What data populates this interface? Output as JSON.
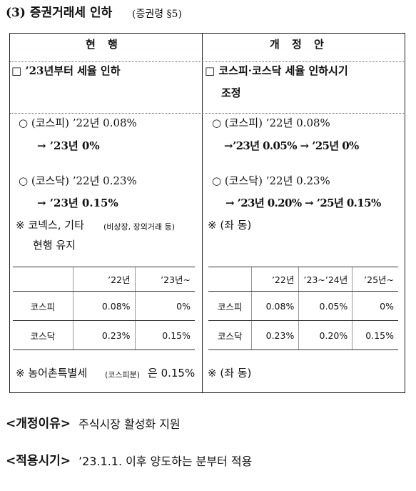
{
  "title": {
    "main": "(3) 증권거래세 인하",
    "ref": "(증권령 §5)"
  },
  "table": {
    "headers": [
      "현 행",
      "개 정 안"
    ],
    "current": {
      "lines": [
        "□ ’23년부터 세율 인하",
        "○ (코스피) ’22년 0.08%",
        "→ ’23년 0%",
        "○ (코스닥) ’22년 0.23%",
        "→ ’23년 0.15%",
        "※ 코넥스, 기타",
        "(비상장, 장외거래 등)",
        "현행 유지"
      ],
      "rate_table": {
        "columns": [
          "’22년",
          "’23년~"
        ],
        "rows": [
          [
            "코스피",
            "0.08%",
            "0%"
          ],
          [
            "코스닥",
            "0.23%",
            "0.15%"
          ]
        ]
      },
      "note": [
        "※ 농어촌특별세",
        "(코스피분)",
        "은 0.15%"
      ]
    },
    "revised": {
      "lines": [
        "□ 코스피·코스닥 세율 인하시기",
        "조정",
        "○ (코스피) ’22년 0.08%",
        "→’23년 0.05% → ’25년 0%",
        "○ (코스닥) ’22년 0.23%",
        "→ ’23년 0.20% → ’25년 0.15%",
        "※ (좌 동)"
      ],
      "rate_table": {
        "columns": [
          "’22년",
          "’23~’24년",
          "’25년~"
        ],
        "rows": [
          [
            "코스피",
            "0.08%",
            "0.05%",
            "0%"
          ],
          [
            "코스닥",
            "0.23%",
            "0.20%",
            "0.15%"
          ]
        ]
      },
      "note": [
        "※ (좌 동)"
      ]
    }
  },
  "reason": {
    "label": "<개정이유>",
    "text": "주식시장 활성화 지원"
  },
  "effective": {
    "label": "<적용시기>",
    "text": "’23.1.1. 이후 양도하는 분부터 적용"
  }
}
